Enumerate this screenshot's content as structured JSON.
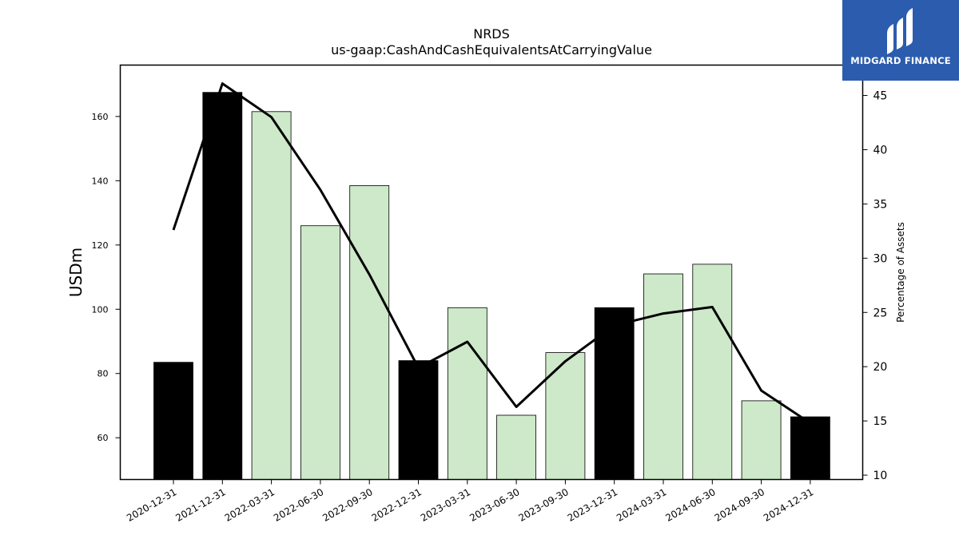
{
  "chart_data": {
    "type": "bar",
    "title": "NRDS",
    "subtitle": "us-gaap:CashAndCashEquivalentsAtCarryingValue",
    "ylabel": "USDm",
    "y2label": "Percentage of Assets",
    "ylim": [
      47,
      176
    ],
    "y2lim": [
      9.6,
      47.8
    ],
    "yticks": [
      60,
      80,
      100,
      120,
      140,
      160
    ],
    "y2ticks": [
      10,
      15,
      20,
      25,
      30,
      35,
      40,
      45
    ],
    "categories": [
      "2020-12-31",
      "2021-12-31",
      "2022-03-31",
      "2022-06-30",
      "2022-09-30",
      "2022-12-31",
      "2023-03-31",
      "2023-06-30",
      "2023-09-30",
      "2023-12-31",
      "2024-03-31",
      "2024-06-30",
      "2024-09-30",
      "2024-12-31"
    ],
    "series": [
      {
        "values": [
          83.5,
          167.5,
          161.5,
          126,
          138.5,
          84,
          100.5,
          67,
          86.5,
          100.5,
          111,
          114,
          71.5,
          66.5
        ],
        "annual": [
          true,
          true,
          false,
          false,
          false,
          true,
          false,
          false,
          false,
          true,
          false,
          false,
          false,
          true
        ]
      },
      {
        "axis": "right",
        "values": [
          32.6,
          46.1,
          43.0,
          36.3,
          28.5,
          19.9,
          22.3,
          16.3,
          20.5,
          23.8,
          24.9,
          25.5,
          17.8,
          14.8
        ]
      }
    ],
    "colors": {
      "annual_bar": "#000000",
      "quarter_bar": "#cde9c9",
      "line": "#000000"
    },
    "grid": false,
    "legend": "none"
  },
  "logo": {
    "text": "MIDGARD FINANCE"
  }
}
